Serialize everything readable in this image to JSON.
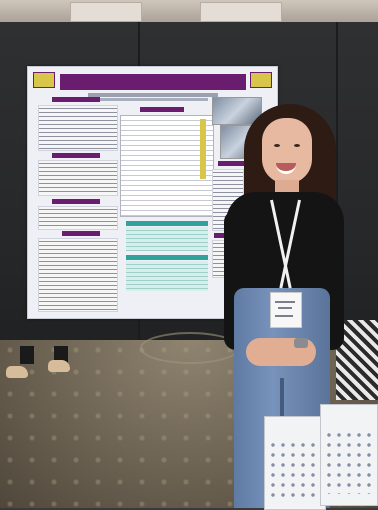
{
  "scene": {
    "colors": {
      "backdrop": "#2f3032",
      "poster_accent": "#6a1d6e",
      "poster_highlight": "#d8c64a",
      "poster_teal": "#2fa39a",
      "jeans": "#6b86b0",
      "top": "#141415",
      "hair": "#2e1c14"
    }
  }
}
